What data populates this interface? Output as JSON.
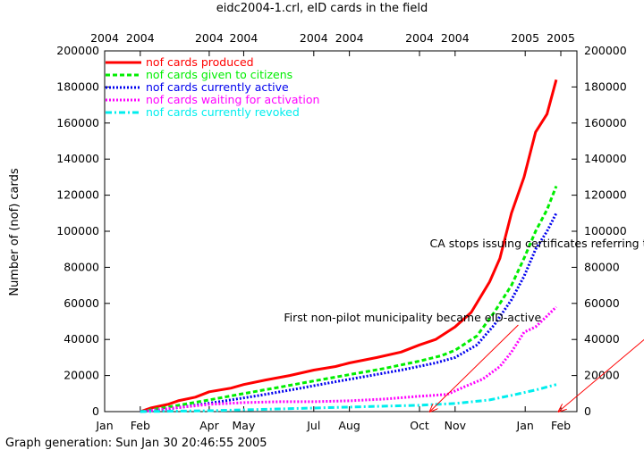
{
  "chart_data": {
    "type": "line",
    "title": "eidc2004-1.crl, eID cards in the field",
    "ylabel": "Number of (nof) cards",
    "footer": "Graph generation: Sun Jan 30 20:46:55 2005",
    "ylim": [
      0,
      200000
    ],
    "y_ticks": [
      0,
      20000,
      40000,
      60000,
      80000,
      100000,
      120000,
      140000,
      160000,
      180000,
      200000
    ],
    "y_tick_labels": [
      "0",
      "20000",
      "40000",
      "60000",
      "80000",
      "100000",
      "120000",
      "140000",
      "160000",
      "180000",
      "200000"
    ],
    "x_domain": [
      "2004-01-01",
      "2005-02-15"
    ],
    "bottom_ticks": [
      {
        "date": "2004-01-01",
        "label": "Jan"
      },
      {
        "date": "2004-02-01",
        "label": "Feb"
      },
      {
        "date": "2004-04-01",
        "label": "Apr"
      },
      {
        "date": "2004-05-01",
        "label": "May"
      },
      {
        "date": "2004-07-01",
        "label": "Jul"
      },
      {
        "date": "2004-08-01",
        "label": "Aug"
      },
      {
        "date": "2004-10-01",
        "label": "Oct"
      },
      {
        "date": "2004-11-01",
        "label": "Nov"
      },
      {
        "date": "2005-01-01",
        "label": "Jan"
      },
      {
        "date": "2005-02-01",
        "label": "Feb"
      }
    ],
    "top_ticks": [
      {
        "date": "2004-01-01",
        "label": "2004"
      },
      {
        "date": "2004-02-01",
        "label": "2004"
      },
      {
        "date": "2004-04-01",
        "label": "2004"
      },
      {
        "date": "2004-05-01",
        "label": "2004"
      },
      {
        "date": "2004-07-01",
        "label": "2004"
      },
      {
        "date": "2004-08-01",
        "label": "2004"
      },
      {
        "date": "2004-10-01",
        "label": "2004"
      },
      {
        "date": "2004-11-01",
        "label": "2004"
      },
      {
        "date": "2005-01-01",
        "label": "2005"
      },
      {
        "date": "2005-02-01",
        "label": "2005"
      }
    ],
    "grid": false,
    "legend_position": "top-left",
    "series": [
      {
        "name": "nof cards produced",
        "color": "#ff0000",
        "style": "solid",
        "points": [
          [
            "2004-02-01",
            0
          ],
          [
            "2004-02-10",
            2000
          ],
          [
            "2004-02-25",
            4000
          ],
          [
            "2004-03-05",
            6000
          ],
          [
            "2004-03-20",
            8000
          ],
          [
            "2004-04-01",
            11000
          ],
          [
            "2004-04-20",
            13000
          ],
          [
            "2004-05-01",
            15000
          ],
          [
            "2004-05-20",
            17500
          ],
          [
            "2004-06-10",
            20000
          ],
          [
            "2004-07-01",
            23000
          ],
          [
            "2004-07-20",
            25000
          ],
          [
            "2004-08-01",
            27000
          ],
          [
            "2004-08-25",
            30000
          ],
          [
            "2004-09-15",
            33000
          ],
          [
            "2004-10-01",
            37000
          ],
          [
            "2004-10-15",
            40000
          ],
          [
            "2004-11-01",
            47000
          ],
          [
            "2004-11-15",
            55000
          ],
          [
            "2004-12-01",
            72000
          ],
          [
            "2004-12-10",
            85000
          ],
          [
            "2004-12-20",
            110000
          ],
          [
            "2004-12-31",
            130000
          ],
          [
            "2005-01-10",
            155000
          ],
          [
            "2005-01-20",
            165000
          ],
          [
            "2005-01-28",
            184000
          ]
        ]
      },
      {
        "name": "nof cards given to citizens",
        "color": "#00ee00",
        "style": "dashed",
        "points": [
          [
            "2004-02-01",
            0
          ],
          [
            "2004-02-20",
            2000
          ],
          [
            "2004-03-10",
            4000
          ],
          [
            "2004-04-01",
            6500
          ],
          [
            "2004-05-01",
            10000
          ],
          [
            "2004-06-01",
            13500
          ],
          [
            "2004-07-01",
            17000
          ],
          [
            "2004-08-01",
            20500
          ],
          [
            "2004-09-01",
            24000
          ],
          [
            "2004-10-01",
            28000
          ],
          [
            "2004-10-20",
            31000
          ],
          [
            "2004-11-01",
            34000
          ],
          [
            "2004-11-20",
            42000
          ],
          [
            "2004-12-05",
            55000
          ],
          [
            "2004-12-20",
            70000
          ],
          [
            "2004-12-31",
            85000
          ],
          [
            "2005-01-10",
            100000
          ],
          [
            "2005-01-20",
            112000
          ],
          [
            "2005-01-28",
            125000
          ]
        ]
      },
      {
        "name": "nof cards currently active",
        "color": "#0000ee",
        "style": "dotted",
        "points": [
          [
            "2004-02-01",
            0
          ],
          [
            "2004-02-25",
            1500
          ],
          [
            "2004-03-20",
            3500
          ],
          [
            "2004-04-15",
            6000
          ],
          [
            "2004-05-15",
            9000
          ],
          [
            "2004-06-15",
            12500
          ],
          [
            "2004-07-15",
            16000
          ],
          [
            "2004-08-15",
            19500
          ],
          [
            "2004-09-15",
            23000
          ],
          [
            "2004-10-15",
            27000
          ],
          [
            "2004-11-01",
            30000
          ],
          [
            "2004-11-20",
            37000
          ],
          [
            "2004-12-05",
            48000
          ],
          [
            "2004-12-20",
            62000
          ],
          [
            "2004-12-31",
            75000
          ],
          [
            "2005-01-10",
            90000
          ],
          [
            "2005-01-20",
            100000
          ],
          [
            "2005-01-28",
            110000
          ]
        ]
      },
      {
        "name": "nof cards waiting for activation",
        "color": "#ff00ff",
        "style": "dotted",
        "points": [
          [
            "2004-02-01",
            0
          ],
          [
            "2004-03-01",
            2000
          ],
          [
            "2004-04-01",
            4000
          ],
          [
            "2004-05-01",
            5000
          ],
          [
            "2004-06-01",
            5500
          ],
          [
            "2004-07-01",
            5500
          ],
          [
            "2004-08-01",
            6000
          ],
          [
            "2004-09-01",
            7000
          ],
          [
            "2004-10-01",
            8500
          ],
          [
            "2004-10-25",
            9500
          ],
          [
            "2004-11-10",
            14000
          ],
          [
            "2004-11-25",
            18000
          ],
          [
            "2004-12-10",
            25000
          ],
          [
            "2004-12-20",
            33000
          ],
          [
            "2004-12-31",
            44000
          ],
          [
            "2005-01-10",
            47000
          ],
          [
            "2005-01-20",
            53000
          ],
          [
            "2005-01-28",
            58000
          ]
        ]
      },
      {
        "name": "nof cards currently revoked",
        "color": "#00eeee",
        "style": "dashdot",
        "points": [
          [
            "2004-02-01",
            0
          ],
          [
            "2004-04-01",
            500
          ],
          [
            "2004-06-01",
            1500
          ],
          [
            "2004-08-01",
            2500
          ],
          [
            "2004-10-01",
            3500
          ],
          [
            "2004-11-01",
            4500
          ],
          [
            "2004-12-01",
            6500
          ],
          [
            "2004-12-20",
            9000
          ],
          [
            "2005-01-10",
            12000
          ],
          [
            "2005-01-28",
            15000
          ]
        ]
      }
    ],
    "annotations": [
      {
        "text": "CA stops issuing certificates referring to this CRL (guess)",
        "at": [
          "2004-10-10",
          91000
        ],
        "arrow_to": [
          "2005-01-30",
          0
        ]
      },
      {
        "text": "First non-pilot municipality became eID-active",
        "at": [
          "2004-06-05",
          50000
        ],
        "arrow_to": [
          "2004-10-10",
          0
        ]
      }
    ]
  }
}
